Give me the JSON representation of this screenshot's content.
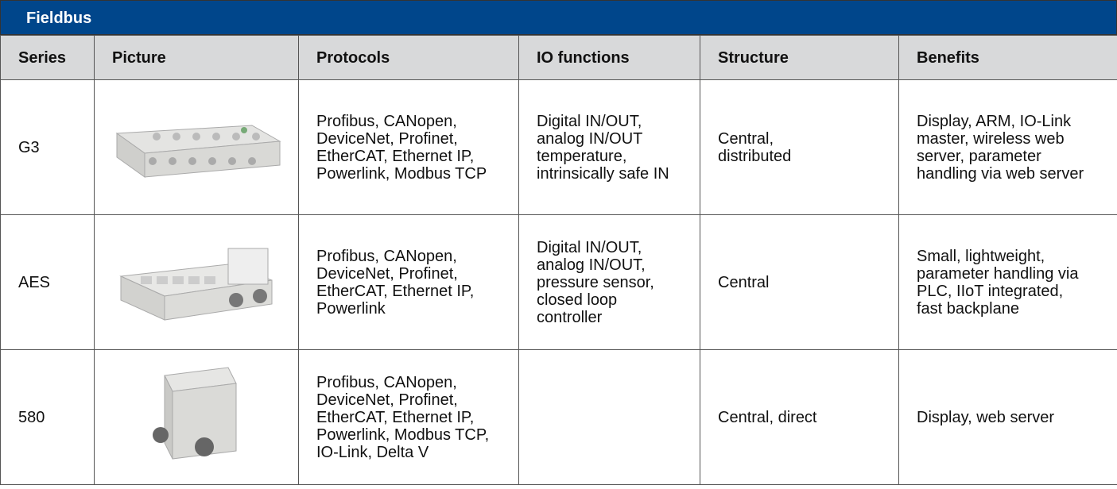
{
  "header": {
    "title": "Fieldbus"
  },
  "table": {
    "columns": [
      "Series",
      "Picture",
      "Protocols",
      "IO functions",
      "Structure",
      "Benefits"
    ],
    "rows": [
      {
        "series": "G3",
        "protocols": [
          "Profibus, CANopen,",
          "DeviceNet, Profinet,",
          "EtherCAT, Ethernet IP,",
          "Powerlink, Modbus TCP"
        ],
        "io_functions": [
          "Digital IN/OUT,",
          "analog IN/OUT",
          "temperature,",
          "intrinsically safe IN"
        ],
        "structure": [
          "Central,",
          "distributed"
        ],
        "benefits": [
          "Display, ARM, IO-Link",
          "master, wireless web",
          "server, parameter",
          "handling via web server"
        ]
      },
      {
        "series": "AES",
        "protocols": [
          "Profibus, CANopen,",
          "DeviceNet, Profinet,",
          "EtherCAT, Ethernet IP,",
          "Powerlink"
        ],
        "io_functions": [
          "Digital IN/OUT,",
          "analog IN/OUT,",
          "pressure sensor,",
          "closed loop",
          "controller"
        ],
        "structure": [
          "Central"
        ],
        "benefits": [
          "Small, lightweight,",
          "parameter handling via",
          "PLC, IIoT integrated,",
          "fast backplane"
        ]
      },
      {
        "series": "580",
        "protocols": [
          "Profibus, CANopen,",
          "DeviceNet, Profinet,",
          "EtherCAT, Ethernet IP,",
          "Powerlink, Modbus TCP,",
          "IO-Link, Delta V"
        ],
        "structure": [
          "Central, direct"
        ],
        "benefits": [
          "Display, web server"
        ]
      }
    ]
  }
}
